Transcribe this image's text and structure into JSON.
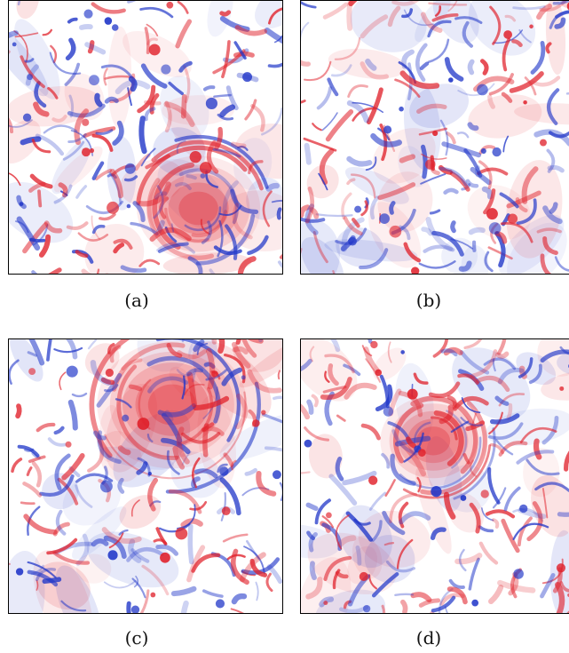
{
  "figure": {
    "colors": {
      "positive": "#e0202a",
      "negative": "#1f35c8",
      "background": "#ffffff",
      "border": "#000000"
    },
    "panels": [
      {
        "label": "(a)"
      },
      {
        "label": "(b)"
      },
      {
        "label": "(c)"
      },
      {
        "label": "(d)"
      }
    ]
  }
}
